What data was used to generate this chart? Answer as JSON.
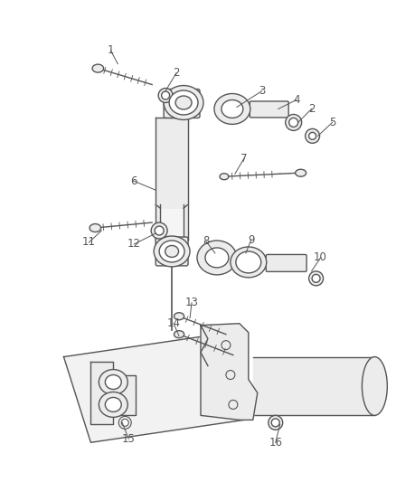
{
  "bg_color": "#ffffff",
  "line_color": "#555555",
  "label_color": "#555555",
  "fig_width": 4.38,
  "fig_height": 5.33,
  "dpi": 100,
  "cyl_fill": "#ececec",
  "white": "#ffffff"
}
